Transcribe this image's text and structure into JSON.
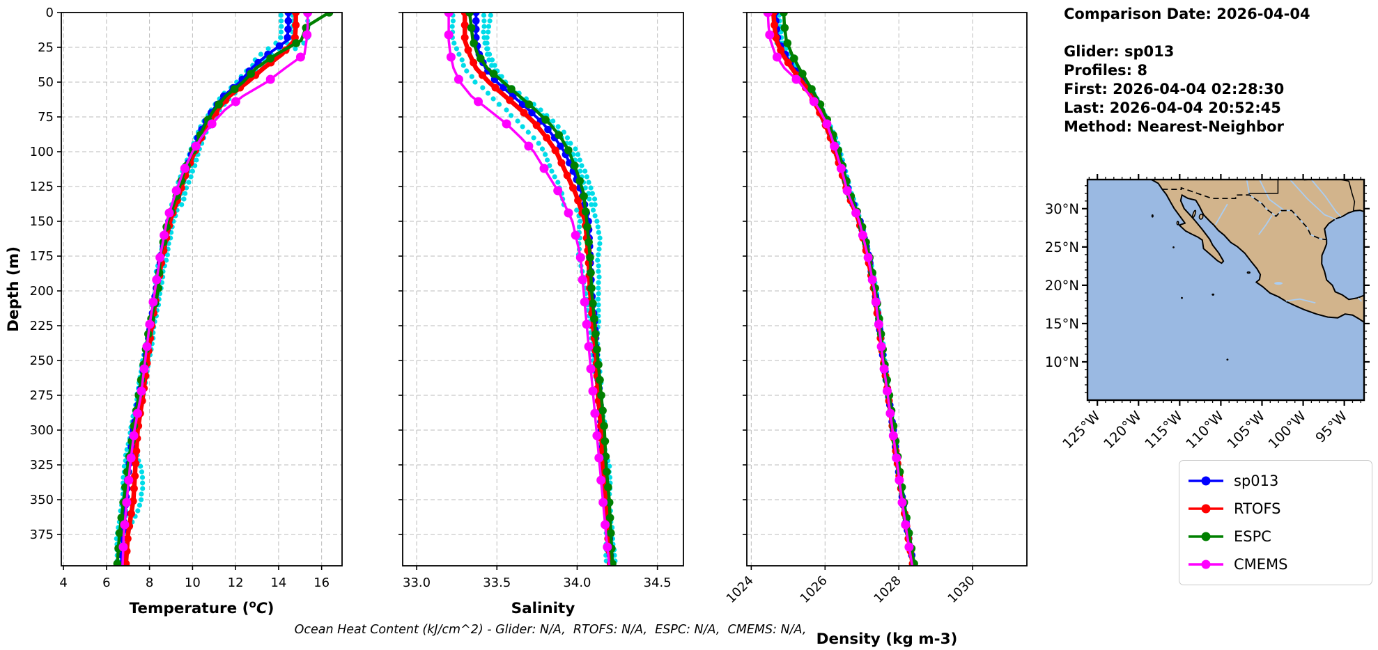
{
  "info": {
    "title": "Comparison Date: 2026-04-04",
    "glider": "Glider: sp013",
    "profiles": "Profiles: 8",
    "first": "First: 2026-04-04 02:28:30",
    "last": "Last: 2026-04-04 20:52:45",
    "method": "Method: Nearest-Neighbor"
  },
  "caption": "Ocean Heat Content (kJ/cm^2) - Glider: N/A,  RTOFS: N/A,  ESPC: N/A,  CMEMS: N/A,",
  "legend": [
    {
      "label": "sp013",
      "color": "#0000ff"
    },
    {
      "label": "RTOFS",
      "color": "#ff0000"
    },
    {
      "label": "ESPC",
      "color": "#008000"
    },
    {
      "label": "CMEMS",
      "color": "#ff00ff"
    }
  ],
  "chart_data": [
    {
      "name": "temperature",
      "type": "line",
      "xlabel_parts": [
        "Temperature (",
        "o",
        "C",
        ")"
      ],
      "xlim": [
        3.9,
        16.95
      ],
      "xticks": [
        4,
        6,
        8,
        10,
        12,
        14,
        16
      ],
      "xtick_labels": [
        "4",
        "6",
        "8",
        "10",
        "12",
        "14",
        "16"
      ],
      "rotate_xticklabels": false,
      "ylabel": "Depth (m)",
      "ylim": [
        0,
        397.5
      ],
      "yticks": [
        0,
        25,
        50,
        75,
        100,
        125,
        150,
        175,
        200,
        225,
        250,
        275,
        300,
        325,
        350,
        375
      ],
      "ytick_labels": [
        "0",
        "25",
        "50",
        "75",
        "100",
        "125",
        "150",
        "175",
        "200",
        "225",
        "250",
        "275",
        "300",
        "325",
        "350",
        "375"
      ],
      "grid": true,
      "depths": [
        0,
        10,
        20,
        30,
        40,
        50,
        60,
        70,
        80,
        90,
        100,
        115,
        130,
        150,
        175,
        200,
        225,
        250,
        275,
        300,
        325,
        350,
        375,
        397
      ],
      "series": [
        {
          "name": "sp013",
          "color": "#0000ff",
          "values": [
            14.45,
            14.45,
            14.4,
            13.5,
            12.75,
            12.2,
            11.45,
            10.95,
            10.55,
            10.25,
            10.0,
            9.65,
            9.35,
            8.9,
            8.55,
            8.3,
            8.05,
            7.8,
            7.55,
            7.25,
            7.05,
            6.9,
            6.75,
            6.7
          ]
        },
        {
          "name": "RTOFS",
          "color": "#ff0000",
          "values": [
            14.8,
            14.8,
            14.75,
            14.15,
            13.3,
            12.55,
            11.7,
            11.15,
            10.75,
            10.4,
            10.1,
            9.7,
            9.4,
            8.95,
            8.6,
            8.35,
            8.1,
            7.9,
            7.7,
            7.45,
            7.35,
            7.25,
            7.0,
            6.9
          ]
        },
        {
          "name": "ESPC",
          "color": "#008000",
          "values": [
            16.35,
            15.3,
            15.05,
            13.9,
            12.95,
            12.35,
            11.55,
            11.0,
            10.6,
            10.3,
            10.0,
            9.6,
            9.3,
            8.85,
            8.5,
            8.4,
            8.0,
            7.75,
            7.5,
            7.25,
            7.0,
            6.8,
            6.6,
            6.5
          ]
        },
        {
          "name": "CMEMS",
          "color": "#ff00ff",
          "values": [
            15.35,
            15.35,
            15.3,
            15.2,
            14.3,
            13.45,
            12.35,
            11.5,
            10.9,
            10.4,
            10.0,
            9.55,
            9.2,
            8.8,
            8.5,
            8.25,
            8.0,
            7.8,
            7.6,
            7.3,
            7.1,
            6.95,
            6.8,
            6.75
          ]
        }
      ],
      "scatter": {
        "name": "glider raw profiles",
        "color": "#00dce8",
        "spread": 0.22,
        "deep_anomaly": 0.55
      }
    },
    {
      "name": "salinity",
      "type": "line",
      "xlabel_parts": [
        "Salinity"
      ],
      "xlim": [
        32.913,
        34.662
      ],
      "xticks": [
        33.0,
        33.5,
        34.0,
        34.5
      ],
      "xtick_labels": [
        "33.0",
        "33.5",
        "34.0",
        "34.5"
      ],
      "rotate_xticklabels": false,
      "ylim": [
        0,
        397.5
      ],
      "yticks": [
        0,
        25,
        50,
        75,
        100,
        125,
        150,
        175,
        200,
        225,
        250,
        275,
        300,
        325,
        350,
        375
      ],
      "grid": true,
      "depths": [
        0,
        10,
        20,
        30,
        40,
        50,
        60,
        70,
        80,
        90,
        100,
        115,
        130,
        150,
        175,
        200,
        225,
        250,
        275,
        300,
        325,
        350,
        375,
        397
      ],
      "series": [
        {
          "name": "sp013",
          "color": "#0000ff",
          "values": [
            33.37,
            33.37,
            33.37,
            33.39,
            33.43,
            33.5,
            33.6,
            33.7,
            33.79,
            33.86,
            33.92,
            33.98,
            34.03,
            34.07,
            34.08,
            34.09,
            34.11,
            34.12,
            34.14,
            34.15,
            34.17,
            34.18,
            34.2,
            34.21
          ]
        },
        {
          "name": "RTOFS",
          "color": "#ff0000",
          "values": [
            33.3,
            33.3,
            33.3,
            33.33,
            33.37,
            33.45,
            33.55,
            33.65,
            33.74,
            33.81,
            33.87,
            33.93,
            33.99,
            34.05,
            34.07,
            34.08,
            34.1,
            34.12,
            34.13,
            34.15,
            34.16,
            34.18,
            34.19,
            34.21
          ]
        },
        {
          "name": "ESPC",
          "color": "#008000",
          "values": [
            33.33,
            33.34,
            33.35,
            33.38,
            33.44,
            33.54,
            33.64,
            33.74,
            33.83,
            33.9,
            33.95,
            34.0,
            34.04,
            34.06,
            34.08,
            34.09,
            34.11,
            34.13,
            34.15,
            34.17,
            34.18,
            34.2,
            34.21,
            34.22
          ]
        },
        {
          "name": "CMEMS",
          "color": "#ff00ff",
          "values": [
            33.2,
            33.2,
            33.2,
            33.21,
            33.23,
            33.27,
            33.34,
            33.45,
            33.56,
            33.65,
            33.73,
            33.81,
            33.89,
            33.97,
            34.02,
            34.04,
            34.06,
            34.08,
            34.1,
            34.12,
            34.14,
            34.16,
            34.18,
            34.2
          ]
        }
      ],
      "scatter": {
        "name": "glider raw profiles",
        "color": "#00dce8",
        "spread": 0.045,
        "deep_anomaly": 0
      }
    },
    {
      "name": "density",
      "type": "line",
      "xlabel_parts": [
        "Density (kg m-3)"
      ],
      "xlim": [
        1023.88,
        1031.47
      ],
      "xticks": [
        1024,
        1026,
        1028,
        1030
      ],
      "xtick_labels": [
        "1024",
        "1026",
        "1028",
        "1030"
      ],
      "rotate_xticklabels": true,
      "ylim": [
        0,
        397.5
      ],
      "yticks": [
        0,
        25,
        50,
        75,
        100,
        125,
        150,
        175,
        200,
        225,
        250,
        275,
        300,
        325,
        350,
        375
      ],
      "grid": true,
      "depths": [
        0,
        10,
        20,
        30,
        40,
        50,
        60,
        70,
        80,
        90,
        100,
        115,
        130,
        150,
        175,
        200,
        225,
        250,
        275,
        300,
        325,
        350,
        375,
        397
      ],
      "series": [
        {
          "name": "sp013",
          "color": "#0000ff",
          "values": [
            1024.65,
            1024.68,
            1024.72,
            1024.92,
            1025.15,
            1025.42,
            1025.68,
            1025.88,
            1026.05,
            1026.2,
            1026.33,
            1026.5,
            1026.65,
            1026.95,
            1027.18,
            1027.35,
            1027.47,
            1027.58,
            1027.72,
            1027.85,
            1027.97,
            1028.1,
            1028.25,
            1028.4
          ]
        },
        {
          "name": "RTOFS",
          "color": "#ff0000",
          "values": [
            1024.6,
            1024.63,
            1024.68,
            1024.85,
            1025.1,
            1025.38,
            1025.62,
            1025.82,
            1026.0,
            1026.15,
            1026.28,
            1026.45,
            1026.62,
            1026.92,
            1027.15,
            1027.33,
            1027.46,
            1027.58,
            1027.71,
            1027.84,
            1027.97,
            1028.1,
            1028.24,
            1028.38
          ]
        },
        {
          "name": "ESPC",
          "color": "#008000",
          "values": [
            1024.88,
            1024.9,
            1024.95,
            1025.1,
            1025.3,
            1025.52,
            1025.75,
            1025.95,
            1026.1,
            1026.25,
            1026.37,
            1026.52,
            1026.67,
            1026.97,
            1027.2,
            1027.37,
            1027.49,
            1027.6,
            1027.74,
            1027.87,
            1028.0,
            1028.13,
            1028.28,
            1028.42
          ]
        },
        {
          "name": "CMEMS",
          "color": "#ff00ff",
          "values": [
            1024.45,
            1024.47,
            1024.52,
            1024.65,
            1024.9,
            1025.3,
            1025.6,
            1025.85,
            1026.05,
            1026.18,
            1026.3,
            1026.47,
            1026.62,
            1026.93,
            1027.16,
            1027.34,
            1027.46,
            1027.57,
            1027.7,
            1027.83,
            1027.96,
            1028.08,
            1028.22,
            1028.36
          ]
        }
      ],
      "scatter": {
        "name": "glider raw profiles",
        "color": "#00dce8",
        "spread": 0.06,
        "deep_anomaly": 0
      }
    }
  ],
  "map": {
    "lon_ticks": [
      -125,
      -120,
      -115,
      -110,
      -105,
      -100,
      -95
    ],
    "lon_tick_labels": [
      "125°W",
      "120°W",
      "115°W",
      "110°W",
      "105°W",
      "100°W",
      "95°W"
    ],
    "lat_ticks": [
      30,
      25,
      20,
      15,
      10
    ],
    "lat_tick_labels": [
      "30°N",
      "25°N",
      "20°N",
      "15°N",
      "10°N"
    ],
    "land_color": "#d2b48c",
    "ocean_color": "#9ab9e2",
    "river_color": "#aacdf2",
    "coast_color": "#000000"
  }
}
